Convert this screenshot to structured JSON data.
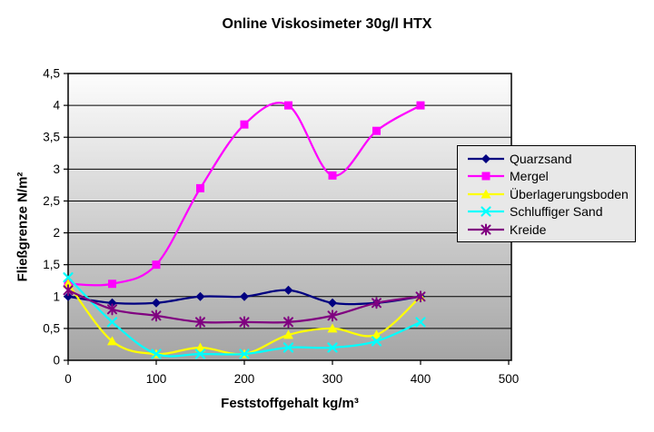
{
  "chart_data": {
    "type": "line",
    "title": "Online Viskosimeter 30g/l HTX",
    "xlabel": "Feststoffgehalt kg/m³",
    "ylabel": "Fließgrenze N/m²",
    "smoothed": true,
    "grid": "horizontal",
    "legend_position": "right",
    "xlim": [
      0,
      500
    ],
    "ylim": [
      0,
      4.5
    ],
    "x_ticks": [
      0,
      100,
      200,
      300,
      400,
      500
    ],
    "x_tick_labels": [
      "0",
      "100",
      "200",
      "300",
      "400",
      "500"
    ],
    "y_ticks": [
      0,
      0.5,
      1,
      1.5,
      2,
      2.5,
      3,
      3.5,
      4,
      4.5
    ],
    "y_tick_labels": [
      "0",
      "0,5",
      "1",
      "1,5",
      "2",
      "2,5",
      "3",
      "3,5",
      "4",
      "4,5"
    ],
    "x": [
      0,
      50,
      100,
      150,
      200,
      250,
      300,
      350,
      400
    ],
    "series": [
      {
        "name": "Quarzsand",
        "color": "#000080",
        "marker": "diamond",
        "values": [
          1.0,
          0.9,
          0.9,
          1.0,
          1.0,
          1.1,
          0.9,
          0.9,
          1.0
        ]
      },
      {
        "name": "Mergel",
        "color": "#FF00FF",
        "marker": "square",
        "values": [
          1.2,
          1.2,
          1.5,
          2.7,
          3.7,
          4.0,
          2.9,
          3.6,
          4.0
        ]
      },
      {
        "name": "Überlagerungsboden",
        "color": "#FFFF00",
        "marker": "triangle",
        "values": [
          1.2,
          0.3,
          0.1,
          0.2,
          0.1,
          0.4,
          0.5,
          0.4,
          1.0
        ]
      },
      {
        "name": "Schluffiger Sand",
        "color": "#00FFFF",
        "marker": "x",
        "values": [
          1.3,
          0.6,
          0.1,
          0.1,
          0.1,
          0.2,
          0.2,
          0.3,
          0.6
        ]
      },
      {
        "name": "Kreide",
        "color": "#800080",
        "marker": "asterisk",
        "values": [
          1.1,
          0.8,
          0.7,
          0.6,
          0.6,
          0.6,
          0.7,
          0.9,
          1.0
        ]
      }
    ],
    "colors": {
      "gridline": "#000000",
      "axis": "#000000",
      "plot_bg_top": "#FDFDFD",
      "plot_bg_bottom": "#A5A5A5",
      "legend_bg": "#E8E8E8",
      "text": "#000000"
    }
  }
}
